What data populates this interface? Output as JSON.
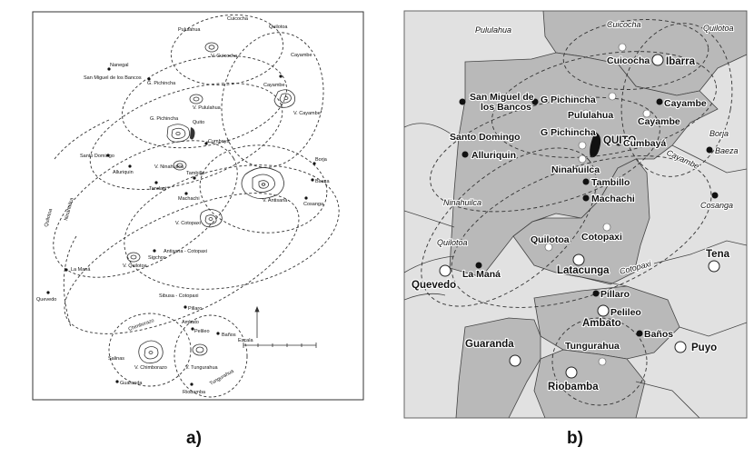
{
  "captions": {
    "a": "a)",
    "b": "b)"
  },
  "colors": {
    "fill": "#b9b9b9",
    "fill_light": "#e1e1e1",
    "background": "#ffffff",
    "ink": "#1a1a1a"
  },
  "map_a": {
    "labels": {
      "cuicocha": "Cuicocha",
      "pululahua_top": "Pululahua",
      "quilotoa_top": "Quilotoa",
      "v_cuicocha": "V. Cuicocha",
      "cayambe_arc": "Cayambe",
      "nanegal": "Nanegal",
      "san_miguel": "San Miguel de los Bancos",
      "g_pichincha_arc": "G. Pichincha",
      "v_pululahua": "V. Pululahua",
      "cayambe": "Cayambe",
      "v_cayambe": "V. Cayambe",
      "g_pichincha": "G. Pichincha",
      "quito": "Quito",
      "cumbaya": "Cumbayá",
      "santo_domingo": "Santo Domingo",
      "alluriquin": "Alluriquin",
      "v_ninahuilca": "V. Ninahuilca",
      "tambillo": "Tambillo",
      "tandapi": "Tandapi",
      "borja": "Borja",
      "baeza": "Baeza",
      "v_antisana": "V. Antisana",
      "cosanga": "Cosanga",
      "machachi": "Machachi",
      "v_cotopaxi": "V. Cotopaxi",
      "quilotoa_left": "Quilotoa",
      "ninahuilca_left": "Ninahuilca",
      "sigchos": "Sigchos",
      "antisana_cotopaxi": "Antisana - Cotopaxi",
      "la_mana": "La Maná",
      "v_quilotoa": "V. Quilotoa",
      "quevedo": "Quevedo",
      "sibusa_cotopaxi": "Sibusa - Cotopaxi",
      "pillaro": "Pillaro",
      "ambato": "Ambato",
      "chimborazo": "Chimborazo",
      "pelileo": "Pelileo",
      "banos": "Baños",
      "escala": "Escala",
      "salinas": "Salinas",
      "v_chimborazo": "V. Chimborazo",
      "v_tungurahua": "V. Tungurahua",
      "guaranda": "Guaranda",
      "tungurahua_arc": "Tungurahua",
      "riobamba": "Riobamba"
    }
  },
  "map_b": {
    "labels": {
      "pululahua_top": "Pululahua",
      "cuicocha_top": "Cuicocha",
      "quilotoa_top": "Quilotoa",
      "cuicocha": "Cuicocha",
      "ibarra": "Ibarra",
      "san_miguel_1": "San Miguel de",
      "san_miguel_2": "los Bancos",
      "g_pichincha_top": "G Pichincha",
      "pululahua": "Pululahua",
      "cayambe_a": "Cayambe",
      "cayambe_b": "Cayambe",
      "santo_domingo": "Santo Domingo",
      "g_pichincha": "G Pichincha",
      "quito": "QUITO",
      "cumbaya": "Cumbayá",
      "alluriquin": "Alluriquin",
      "ninahuilca": "Ninahuilca",
      "cayambe_arc": "Cayambe",
      "borja": "Borja",
      "baeza": "Baeza",
      "cosanga": "Cosanga",
      "tambillo": "Tambillo",
      "ninahuilca_left": "Ninahuilca",
      "machachi": "Machachi",
      "quilotoa_left": "Quilotoa",
      "quilotoa": "Quilotoa",
      "cotopaxi": "Cotopaxi",
      "tena": "Tena",
      "la_mana": "La Maná",
      "latacunga": "Latacunga",
      "cotopaxi_arc": "Cotopaxi",
      "quevedo": "Quevedo",
      "pillaro": "Pillaro",
      "pelileo": "Pelileo",
      "ambato": "Ambato",
      "banos": "Baños",
      "guaranda": "Guaranda",
      "tungurahua": "Tungurahua",
      "puyo": "Puyo",
      "riobamba": "Riobamba"
    }
  }
}
